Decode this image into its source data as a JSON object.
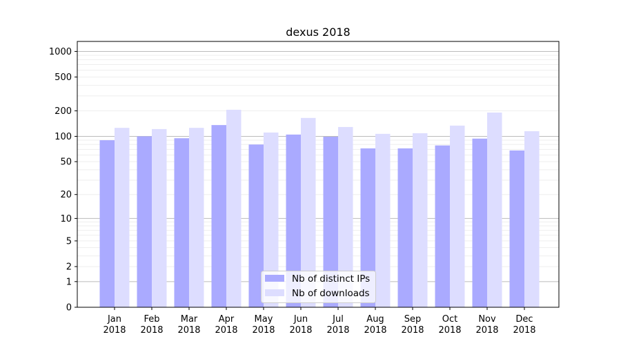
{
  "chart_data": {
    "type": "bar",
    "title": "dexus 2018",
    "xlabel": "",
    "ylabel": "",
    "yscale": "symlog",
    "ylim": [
      0,
      1300
    ],
    "yticks": [
      0,
      1,
      2,
      5,
      10,
      20,
      50,
      100,
      200,
      500,
      1000
    ],
    "ytick_labels": [
      "0",
      "1",
      "2",
      "5",
      "10",
      "20",
      "50",
      "100",
      "200",
      "500",
      "1000"
    ],
    "categories": [
      "Jan\n2018",
      "Feb\n2018",
      "Mar\n2018",
      "Apr\n2018",
      "May\n2018",
      "Jun\n2018",
      "Jul\n2018",
      "Aug\n2018",
      "Sep\n2018",
      "Oct\n2018",
      "Nov\n2018",
      "Dec\n2018"
    ],
    "category_lines": [
      [
        "Jan",
        "2018"
      ],
      [
        "Feb",
        "2018"
      ],
      [
        "Mar",
        "2018"
      ],
      [
        "Apr",
        "2018"
      ],
      [
        "May",
        "2018"
      ],
      [
        "Jun",
        "2018"
      ],
      [
        "Jul",
        "2018"
      ],
      [
        "Aug",
        "2018"
      ],
      [
        "Sep",
        "2018"
      ],
      [
        "Oct",
        "2018"
      ],
      [
        "Nov",
        "2018"
      ],
      [
        "Dec",
        "2018"
      ]
    ],
    "series": [
      {
        "name": "Nb of distinct IPs",
        "color": "#aaaaff",
        "values": [
          90,
          100,
          95,
          136,
          80,
          105,
          99,
          72,
          72,
          78,
          94,
          68
        ]
      },
      {
        "name": "Nb of downloads",
        "color": "#ddddff",
        "values": [
          126,
          122,
          126,
          206,
          111,
          165,
          129,
          107,
          109,
          134,
          191,
          115
        ]
      }
    ],
    "grid": true,
    "legend_placement": "lower center"
  }
}
